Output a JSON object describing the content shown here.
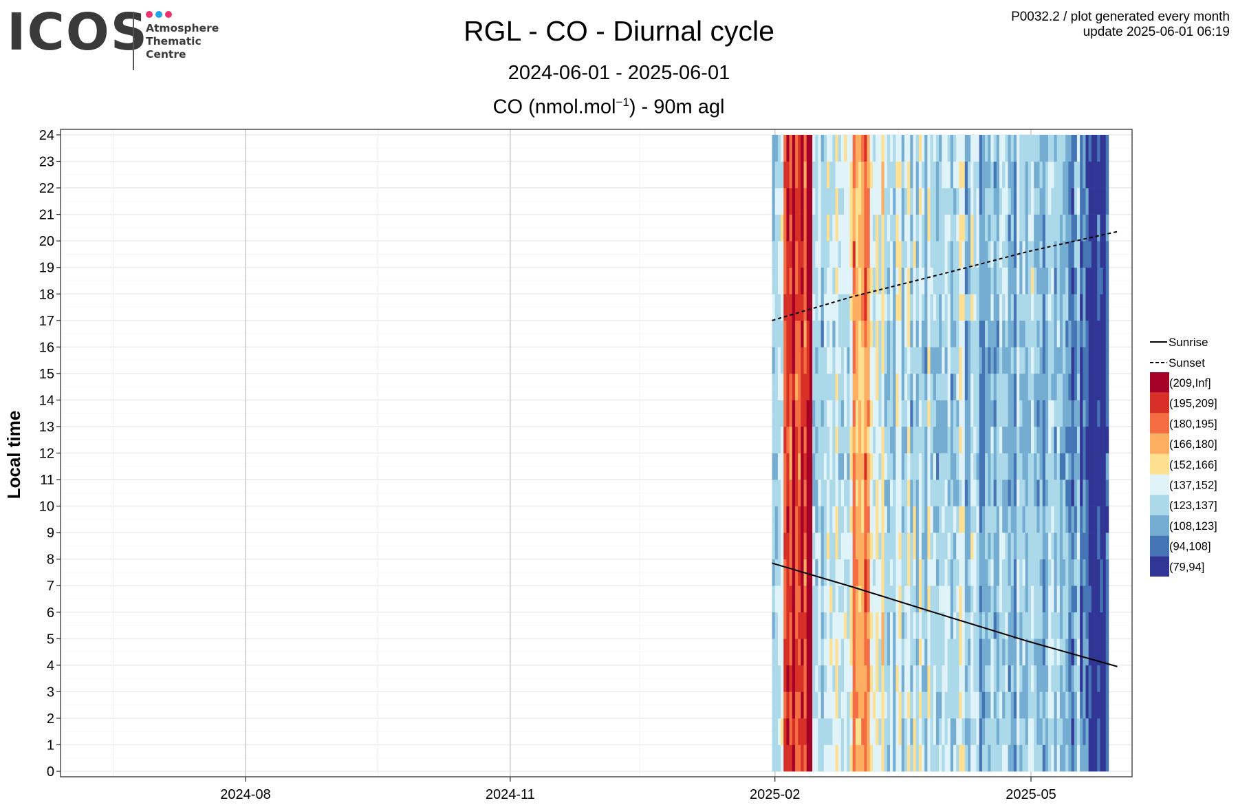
{
  "header": {
    "logo_word": "ICOS",
    "logo_lines": [
      "Atmosphere",
      "Thematic",
      "Centre"
    ],
    "logo_dot_colors": [
      "#e8336d",
      "#1fa3e8",
      "#e8336d"
    ],
    "title": "RGL - CO - Diurnal cycle",
    "date_range": "2024-06-01 - 2025-06-01",
    "unit_prefix": "CO (nmol.mol",
    "unit_sup": "−1",
    "unit_suffix": ") - 90m agl",
    "meta_line1": "P0032.2 / plot generated every month",
    "meta_line2": "update  2025-06-01 06:19"
  },
  "chart_data": {
    "type": "heatmap",
    "title": "RGL - CO - Diurnal cycle",
    "subtitle": "2024-06-01 - 2025-06-01",
    "variable": "CO (nmol.mol-1) - 90m agl",
    "ylabel": "Local time",
    "xlabel": "",
    "xlim": [
      "2024-06-01",
      "2025-06-01"
    ],
    "ylim": [
      0,
      24
    ],
    "x_ticks": [
      "2024-08",
      "2024-11",
      "2025-02",
      "2025-05"
    ],
    "x_tick_dates": [
      "2024-08-01",
      "2024-11-01",
      "2025-02-01",
      "2025-05-01"
    ],
    "y_ticks": [
      0,
      1,
      2,
      3,
      4,
      5,
      6,
      7,
      8,
      9,
      10,
      11,
      12,
      13,
      14,
      15,
      16,
      17,
      18,
      19,
      20,
      21,
      22,
      23,
      24
    ],
    "data_start": "2025-01-31",
    "data_end": "2025-05-27",
    "legend_position": "right",
    "bins": [
      {
        "label": "(209,Inf]",
        "color": "#a50026"
      },
      {
        "label": "(195,209]",
        "color": "#d73027"
      },
      {
        "label": "(180,195]",
        "color": "#f46d43"
      },
      {
        "label": "(166,180]",
        "color": "#fdae61"
      },
      {
        "label": "(152,166]",
        "color": "#fee090"
      },
      {
        "label": "(137,152]",
        "color": "#e0f3f8"
      },
      {
        "label": "(123,137]",
        "color": "#abd9e9"
      },
      {
        "label": "(108,123]",
        "color": "#74add1"
      },
      {
        "label": "(94,108]",
        "color": "#4575b4"
      },
      {
        "label": "(79,94]",
        "color": "#313695"
      }
    ],
    "lines": [
      {
        "name": "Sunrise",
        "style": "solid",
        "points": [
          [
            "2025-01-31",
            7.85
          ],
          [
            "2025-02-28",
            6.95
          ],
          [
            "2025-03-31",
            5.9
          ],
          [
            "2025-04-30",
            4.9
          ],
          [
            "2025-05-31",
            3.95
          ]
        ]
      },
      {
        "name": "Sunset",
        "style": "dashed",
        "points": [
          [
            "2025-01-31",
            17.0
          ],
          [
            "2025-02-28",
            17.9
          ],
          [
            "2025-03-31",
            18.75
          ],
          [
            "2025-04-30",
            19.6
          ],
          [
            "2025-05-31",
            20.35
          ]
        ]
      }
    ]
  }
}
